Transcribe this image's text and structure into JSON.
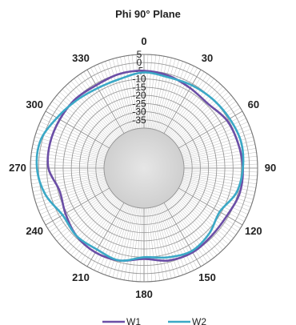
{
  "chart_data": {
    "type": "polar-line",
    "title": "Phi 90° Plane",
    "angle_ticks": [
      "0",
      "30",
      "60",
      "90",
      "120",
      "150",
      "180",
      "210",
      "240",
      "270",
      "300",
      "330"
    ],
    "radial_ticks": [
      5,
      0,
      -5,
      -10,
      -15,
      -20,
      -25,
      -30,
      -35
    ],
    "radial_range": [
      -40,
      5
    ],
    "grid": true,
    "legend": {
      "position": "bottom",
      "entries": [
        "W1",
        "W2"
      ]
    },
    "colors": {
      "W1": "#6b4ea6",
      "W2": "#3aa8c6",
      "grid": "#999999",
      "center_fill": "#cfcfcf"
    },
    "theta_deg": [
      0,
      15,
      30,
      45,
      60,
      75,
      90,
      105,
      120,
      135,
      150,
      165,
      180,
      195,
      210,
      225,
      240,
      255,
      270,
      285,
      300,
      315,
      330,
      345
    ],
    "series": [
      {
        "name": "W1",
        "values": [
          -5,
          -6,
          -8,
          -9,
          -6,
          -5,
          -4,
          -4,
          -6,
          -6,
          -5,
          -6,
          -9,
          -6,
          -5,
          -6,
          -9,
          -11,
          -6,
          -5,
          -5,
          -5,
          -6,
          -5
        ]
      },
      {
        "name": "W2",
        "values": [
          -6,
          -7,
          -6,
          -5,
          -4,
          -3,
          -4,
          -6,
          -11,
          -8,
          -6,
          -8,
          -10,
          -6,
          -7,
          -6,
          -7,
          -2,
          1,
          1,
          -3,
          -6,
          -8,
          -8
        ]
      }
    ]
  }
}
